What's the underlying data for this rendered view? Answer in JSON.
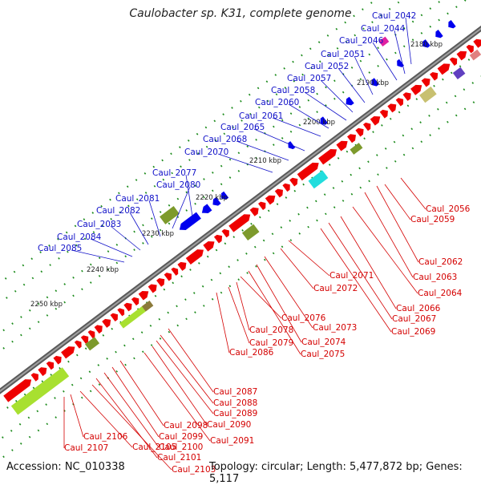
{
  "title": "Caulobacter sp. K31, complete genome",
  "footer": {
    "accession": "Accession: NC_010338",
    "topology": "Topology: circular; Length: 5,477,872 bp; Genes: 5,117"
  },
  "colors": {
    "blue_label": "#1010c8",
    "red_label": "#d40000",
    "backbone": "#7a7a7a",
    "forward_gene": "#ee0000",
    "reverse_gene": "#0000ee",
    "cds_olive": "#7d9a2c",
    "cds_lime": "#a8e030",
    "cds_cyan": "#22dddd",
    "cds_tan": "#c8c070",
    "dots": "#1a8a1a"
  },
  "ticks": [
    "2180 kbp",
    "2190 kbp",
    "2200 kbp",
    "2210 kbp",
    "2220 kbp",
    "2230 kbp",
    "2240 kbp",
    "2250 kbp"
  ],
  "labels_blue": [
    "Caul_2042",
    "Caul_2044",
    "Caul_2046",
    "Caul_2051",
    "Caul_2052",
    "Caul_2057",
    "Caul_2058",
    "Caul_2060",
    "Caul_2061",
    "Caul_2065",
    "Caul_2068",
    "Caul_2070",
    "Caul_2077",
    "Caul_2080",
    "Caul_2081",
    "Caul_2082",
    "Caul_2083",
    "Caul_2084",
    "Caul_2085"
  ],
  "labels_red": [
    "Caul_2056",
    "Caul_2059",
    "Caul_2062",
    "Caul_2063",
    "Caul_2064",
    "Caul_2066",
    "Caul_2067",
    "Caul_2069",
    "Caul_2071",
    "Caul_2072",
    "Caul_2073",
    "Caul_2074",
    "Caul_2075",
    "Caul_2076",
    "Caul_2078",
    "Caul_2079",
    "Caul_2086",
    "Caul_2087",
    "Caul_2088",
    "Caul_2089",
    "Caul_2090",
    "Caul_2091",
    "Caul_2098",
    "Caul_2099",
    "Caul_2100",
    "Caul_2101",
    "Caul_2103",
    "Caul_2105",
    "Caul_2106",
    "Caul_2107"
  ]
}
